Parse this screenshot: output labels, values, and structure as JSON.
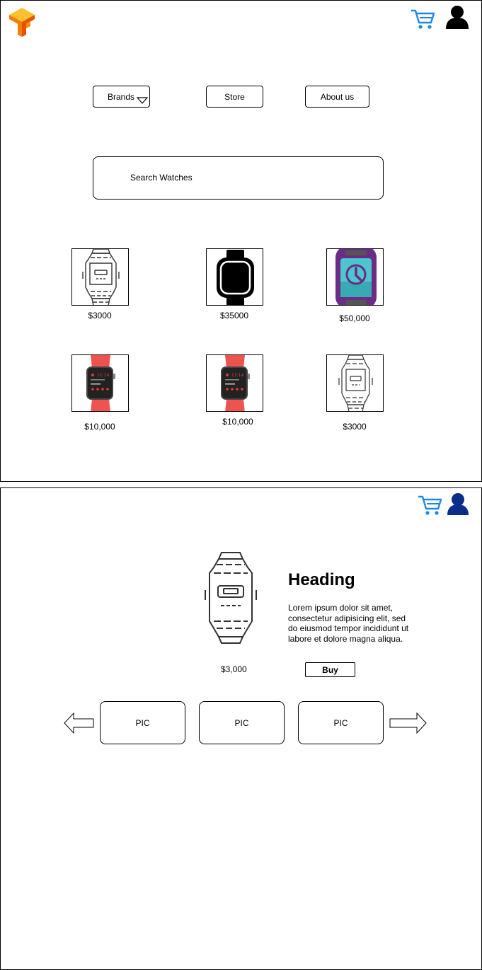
{
  "colors": {
    "cart": "#1E88E5",
    "user_top": "#000000",
    "user_bottom": "#0B2E8A",
    "logo_light": "#F9A825",
    "logo_dark": "#E65100"
  },
  "icons": {
    "logo": "tensor-logo-icon",
    "cart": "cart-icon",
    "user": "user-icon",
    "dropdown": "triangle-down-icon",
    "arrow_left": "arrow-left-icon",
    "arrow_right": "arrow-right-icon"
  },
  "nav": {
    "brands": "Brands",
    "store": "Store",
    "about": "About us"
  },
  "search": {
    "label": "Search Watches"
  },
  "products": [
    {
      "price": "$3000",
      "image": "digital-watch-outline"
    },
    {
      "price": "$35000",
      "image": "black-smartwatch"
    },
    {
      "price": "$50,000",
      "image": "purple-smartwatch"
    },
    {
      "price": "$10,000",
      "image": "red-apple-watch"
    },
    {
      "price": "$10,000",
      "image": "red-apple-watch"
    },
    {
      "price": "$3000",
      "image": "digital-watch-outline"
    }
  ],
  "detail": {
    "heading": "Heading",
    "description": "Lorem ipsum dolor sit amet, consectetur adipisicing elit, sed do eiusmod tempor incididunt ut labore et dolore magna aliqua.",
    "price": "$3,000",
    "buy": "Buy",
    "pics": [
      "PIC",
      "PIC",
      "PIC"
    ]
  }
}
